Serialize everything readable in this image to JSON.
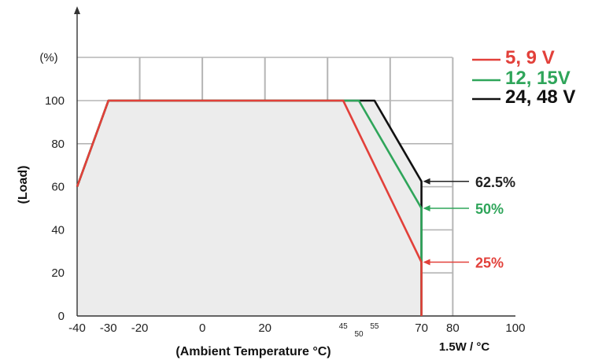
{
  "chart_data": {
    "type": "line",
    "xlabel": "(Ambient Temperature °C)",
    "ylabel": "(Load)",
    "y_unit_label": "(%)",
    "xlim": [
      -40,
      100
    ],
    "ylim": [
      0,
      100
    ],
    "x_ticks": [
      -40,
      -30,
      -20,
      0,
      20,
      40,
      60,
      70,
      80,
      100
    ],
    "x_tick_labels": [
      "-40",
      "-30",
      "-20",
      "0",
      "20",
      "",
      "",
      "70",
      "80",
      "100"
    ],
    "x_minor_tick_labels": [
      {
        "x": 45,
        "label": "45"
      },
      {
        "x": 50,
        "label": "50"
      },
      {
        "x": 55,
        "label": "55"
      }
    ],
    "y_ticks": [
      0,
      20,
      40,
      60,
      80,
      100
    ],
    "y_tick_labels": [
      "0",
      "20",
      "40",
      "60",
      "80",
      "100"
    ],
    "slope_label": "1.5W / °C",
    "grid": true,
    "legend_position": "top-right",
    "series": [
      {
        "name": "5, 9 V",
        "color": "#e2403a",
        "x": [
          -40,
          -30,
          45,
          70,
          70
        ],
        "y": [
          60,
          100,
          100,
          25,
          0
        ]
      },
      {
        "name": "12, 15V",
        "color": "#2fa55a",
        "x": [
          -40,
          -30,
          50,
          70,
          70
        ],
        "y": [
          60,
          100,
          100,
          50,
          0
        ]
      },
      {
        "name": "24, 48 V",
        "color": "#111111",
        "x": [
          -40,
          -30,
          55,
          70,
          70
        ],
        "y": [
          60,
          100,
          100,
          62.5,
          0
        ]
      }
    ],
    "annotations": [
      {
        "text": "62.5%",
        "x": 70,
        "y": 62.5,
        "color": "#222222"
      },
      {
        "text": "50%",
        "x": 70,
        "y": 50,
        "color": "#2fa55a"
      },
      {
        "text": "25%",
        "x": 70,
        "y": 25,
        "color": "#e2403a"
      }
    ]
  }
}
